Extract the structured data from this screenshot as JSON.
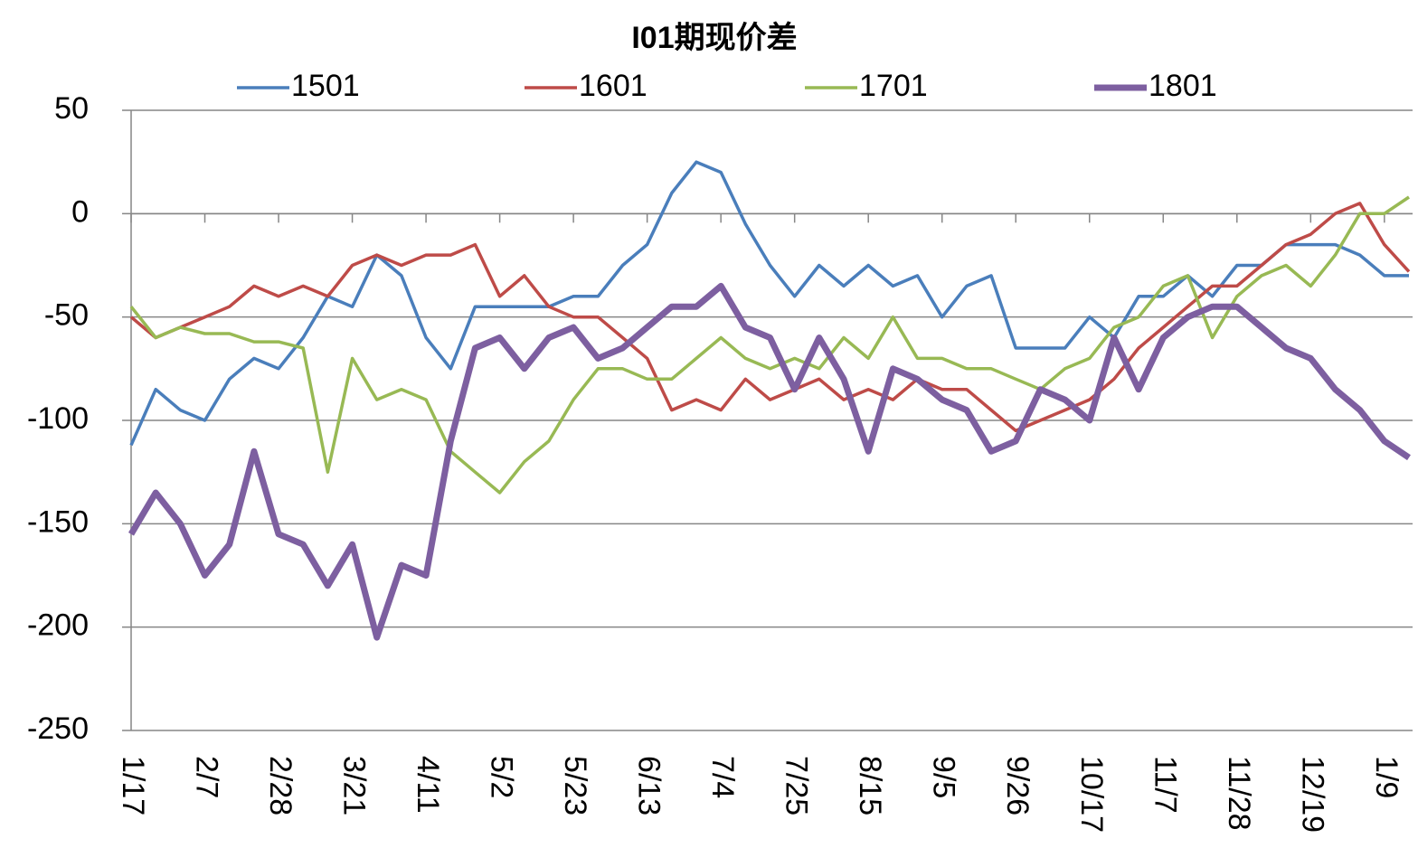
{
  "chart_data": {
    "type": "line",
    "title": "I01期现价差",
    "categories": [
      "1/17",
      null,
      null,
      "2/7",
      null,
      null,
      "2/28",
      null,
      null,
      "3/21",
      null,
      null,
      "4/11",
      null,
      null,
      "5/2",
      null,
      null,
      "5/23",
      null,
      null,
      "6/13",
      null,
      null,
      "7/4",
      null,
      null,
      "7/25",
      null,
      null,
      "8/15",
      null,
      null,
      "9/5",
      null,
      null,
      "9/26",
      null,
      null,
      "10/17",
      null,
      null,
      "11/7",
      null,
      null,
      "11/28",
      null,
      null,
      "12/19",
      null,
      null,
      "1/9",
      null
    ],
    "series": [
      {
        "name": "1501",
        "color": "#4a7ebb",
        "values": [
          -112,
          -85,
          -95,
          -100,
          -80,
          -70,
          -75,
          -60,
          -40,
          -45,
          -20,
          -30,
          -60,
          -75,
          -45,
          -45,
          -45,
          -45,
          -40,
          -40,
          -25,
          -15,
          10,
          25,
          20,
          -5,
          -25,
          -40,
          -25,
          -35,
          -25,
          -35,
          -30,
          -50,
          -35,
          -30,
          -65,
          -65,
          -65,
          -50,
          -60,
          -40,
          -40,
          -30,
          -40,
          -25,
          -25,
          -15,
          -15,
          -15,
          -20,
          -30,
          -30
        ]
      },
      {
        "name": "1601",
        "color": "#be4b48",
        "values": [
          -50,
          -60,
          -55,
          -50,
          -45,
          -35,
          -40,
          -35,
          -40,
          -25,
          -20,
          -25,
          -20,
          -20,
          -15,
          -40,
          -30,
          -45,
          -50,
          -50,
          -60,
          -70,
          -95,
          -90,
          -95,
          -80,
          -90,
          -85,
          -80,
          -90,
          -85,
          -90,
          -80,
          -85,
          -85,
          -95,
          -105,
          -100,
          -95,
          -90,
          -80,
          -65,
          -55,
          -45,
          -35,
          -35,
          -25,
          -15,
          -10,
          0,
          5,
          -15,
          -28
        ]
      },
      {
        "name": "1701",
        "color": "#98b954",
        "values": [
          -45,
          -60,
          -55,
          -58,
          -58,
          -62,
          -62,
          -65,
          -125,
          -70,
          -90,
          -85,
          -90,
          -115,
          -125,
          -135,
          -120,
          -110,
          -90,
          -75,
          -75,
          -80,
          -80,
          -70,
          -60,
          -70,
          -75,
          -70,
          -75,
          -60,
          -70,
          -50,
          -70,
          -70,
          -75,
          -75,
          -80,
          -85,
          -75,
          -70,
          -55,
          -50,
          -35,
          -30,
          -60,
          -40,
          -30,
          -25,
          -35,
          -20,
          0,
          0,
          8
        ]
      },
      {
        "name": "1801",
        "color": "#7d5fa0",
        "values": [
          -155,
          -135,
          -150,
          -175,
          -160,
          -115,
          -155,
          -160,
          -180,
          -160,
          -205,
          -170,
          -175,
          -110,
          -65,
          -60,
          -75,
          -60,
          -55,
          -70,
          -65,
          -55,
          -45,
          -45,
          -35,
          -55,
          -60,
          -85,
          -60,
          -80,
          -115,
          -75,
          -80,
          -90,
          -95,
          -115,
          -110,
          -85,
          -90,
          -100,
          -60,
          -85,
          -60,
          -50,
          -45,
          -45,
          -55,
          -65,
          -70,
          -85,
          -95,
          -110,
          -118
        ]
      }
    ],
    "ylim": [
      -250,
      50
    ],
    "yticks": [
      -250,
      -200,
      -150,
      -100,
      -50,
      0,
      50
    ],
    "grid": true
  }
}
